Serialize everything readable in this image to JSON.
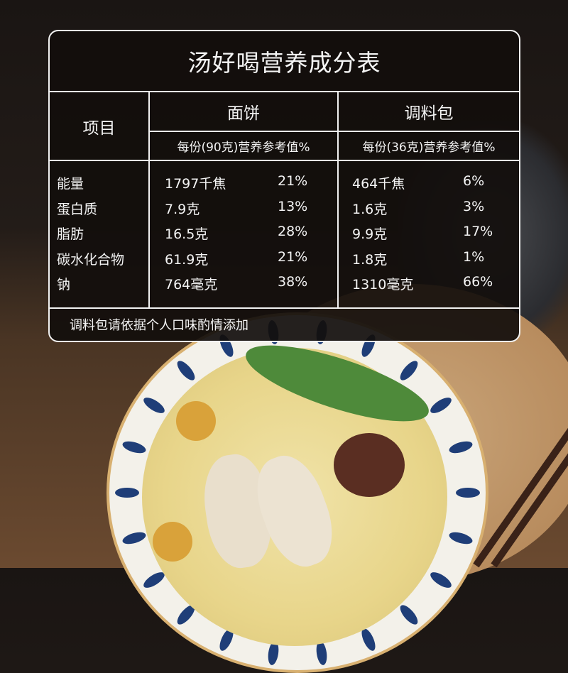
{
  "table": {
    "title": "汤好喝营养成分表",
    "header": {
      "item_label": "项目",
      "columns": [
        {
          "name": "面饼",
          "subheader": "每份(90克)营养参考值%"
        },
        {
          "name": "调料包",
          "subheader": "每份(36克)营养参考值%"
        }
      ]
    },
    "rows": [
      {
        "item": "能量",
        "noodle_amount": "1797千焦",
        "noodle_pct": "21%",
        "seasoning_amount": "464千焦",
        "seasoning_pct": "6%"
      },
      {
        "item": "蛋白质",
        "noodle_amount": "7.9克",
        "noodle_pct": "13%",
        "seasoning_amount": "1.6克",
        "seasoning_pct": "3%"
      },
      {
        "item": "脂肪",
        "noodle_amount": "16.5克",
        "noodle_pct": "28%",
        "seasoning_amount": "9.9克",
        "seasoning_pct": "17%"
      },
      {
        "item": "碳水化合物",
        "noodle_amount": "61.9克",
        "noodle_pct": "21%",
        "seasoning_amount": "1.8克",
        "seasoning_pct": "1%"
      },
      {
        "item": "钠",
        "noodle_amount": "764毫克",
        "noodle_pct": "38%",
        "seasoning_amount": "1310毫克",
        "seasoning_pct": "66%"
      }
    ],
    "footer_note": "调料包请依据个人口味酌情添加"
  }
}
